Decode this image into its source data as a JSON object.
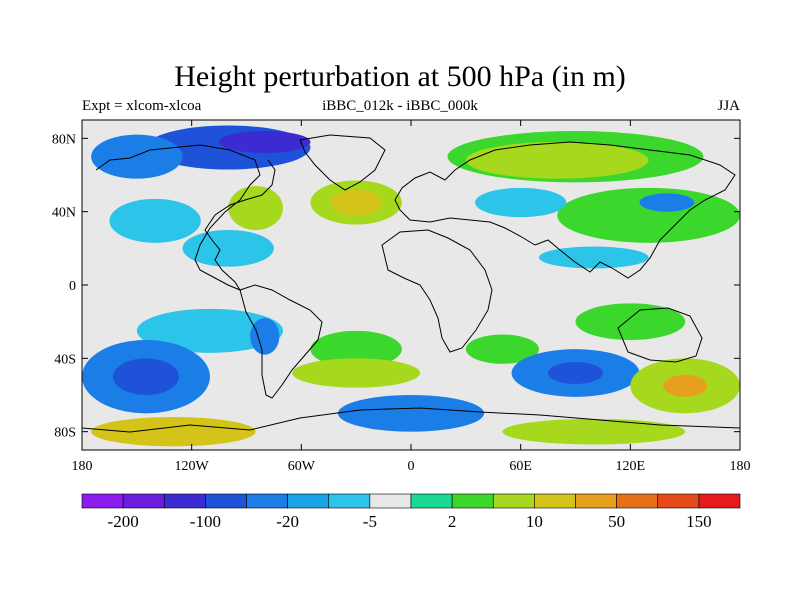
{
  "title": "Height perturbation at 500 hPa (in m)",
  "left_string": "Expt = xlcom-xlcoa",
  "center_string": "iBBC_012k - iBBC_000k",
  "right_string": "JJA",
  "map": {
    "projection": "cylindrical equidistant",
    "lon_ticks": [
      "180",
      "120W",
      "60W",
      "0",
      "60E",
      "120E",
      "180"
    ],
    "lat_ticks": [
      "80N",
      "40N",
      "0",
      "40S",
      "80S"
    ],
    "lat_values": [
      80,
      40,
      0,
      -40,
      -80
    ],
    "lon_range": [
      -180,
      180
    ],
    "lat_range": [
      -90,
      90
    ],
    "background_color": "#e8e8e8"
  },
  "colorbar": {
    "colors": [
      "#8c1cf0",
      "#6a1de0",
      "#3b2bd0",
      "#1e52d8",
      "#1a7ee6",
      "#1aa4e6",
      "#2cc4e8",
      "#e8e8e8",
      "#1ad994",
      "#3cd72c",
      "#a6d91e",
      "#d4c41a",
      "#e6a01e",
      "#e6701a",
      "#e64a1a",
      "#e61a1a"
    ],
    "labels": [
      "-200",
      "-100",
      "-20",
      "-5",
      "2",
      "10",
      "50",
      "150"
    ]
  },
  "anomaly_patches": [
    {
      "lon": -100,
      "lat": 75,
      "rx": 45,
      "ry": 12,
      "color": "#1e52d8"
    },
    {
      "lon": -80,
      "lat": 78,
      "rx": 25,
      "ry": 6,
      "color": "#3b2bd0"
    },
    {
      "lon": -150,
      "lat": 70,
      "rx": 25,
      "ry": 12,
      "color": "#1a7ee6"
    },
    {
      "lon": 90,
      "lat": 70,
      "rx": 70,
      "ry": 14,
      "color": "#3cd72c"
    },
    {
      "lon": 80,
      "lat": 68,
      "rx": 50,
      "ry": 10,
      "color": "#a6d91e"
    },
    {
      "lon": -30,
      "lat": 45,
      "rx": 25,
      "ry": 12,
      "color": "#a6d91e"
    },
    {
      "lon": -30,
      "lat": 45,
      "rx": 14,
      "ry": 7,
      "color": "#d4c41a"
    },
    {
      "lon": -85,
      "lat": 42,
      "rx": 15,
      "ry": 12,
      "color": "#a6d91e"
    },
    {
      "lon": -140,
      "lat": 35,
      "rx": 25,
      "ry": 12,
      "color": "#2cc4e8"
    },
    {
      "lon": 130,
      "lat": 38,
      "rx": 50,
      "ry": 15,
      "color": "#3cd72c"
    },
    {
      "lon": 140,
      "lat": 45,
      "rx": 15,
      "ry": 5,
      "color": "#1a7ee6"
    },
    {
      "lon": 60,
      "lat": 45,
      "rx": 25,
      "ry": 8,
      "color": "#2cc4e8"
    },
    {
      "lon": -100,
      "lat": 20,
      "rx": 25,
      "ry": 10,
      "color": "#2cc4e8"
    },
    {
      "lon": 100,
      "lat": 15,
      "rx": 30,
      "ry": 6,
      "color": "#2cc4e8"
    },
    {
      "lon": -110,
      "lat": -25,
      "rx": 40,
      "ry": 12,
      "color": "#2cc4e8"
    },
    {
      "lon": -80,
      "lat": -28,
      "rx": 8,
      "ry": 10,
      "color": "#1a7ee6"
    },
    {
      "lon": -30,
      "lat": -35,
      "rx": 25,
      "ry": 10,
      "color": "#3cd72c"
    },
    {
      "lon": -30,
      "lat": -48,
      "rx": 35,
      "ry": 8,
      "color": "#a6d91e"
    },
    {
      "lon": 50,
      "lat": -35,
      "rx": 20,
      "ry": 8,
      "color": "#3cd72c"
    },
    {
      "lon": 120,
      "lat": -20,
      "rx": 30,
      "ry": 10,
      "color": "#3cd72c"
    },
    {
      "lon": -145,
      "lat": -50,
      "rx": 35,
      "ry": 20,
      "color": "#1a7ee6"
    },
    {
      "lon": -145,
      "lat": -50,
      "rx": 18,
      "ry": 10,
      "color": "#1e52d8"
    },
    {
      "lon": 90,
      "lat": -48,
      "rx": 35,
      "ry": 13,
      "color": "#1a7ee6"
    },
    {
      "lon": 90,
      "lat": -48,
      "rx": 15,
      "ry": 6,
      "color": "#1e52d8"
    },
    {
      "lon": 150,
      "lat": -55,
      "rx": 30,
      "ry": 15,
      "color": "#a6d91e"
    },
    {
      "lon": 150,
      "lat": -55,
      "rx": 12,
      "ry": 6,
      "color": "#e6a01e"
    },
    {
      "lon": 0,
      "lat": -70,
      "rx": 40,
      "ry": 10,
      "color": "#1a7ee6"
    },
    {
      "lon": -130,
      "lat": -80,
      "rx": 45,
      "ry": 8,
      "color": "#d4c41a"
    },
    {
      "lon": 100,
      "lat": -80,
      "rx": 50,
      "ry": 7,
      "color": "#a6d91e"
    }
  ]
}
